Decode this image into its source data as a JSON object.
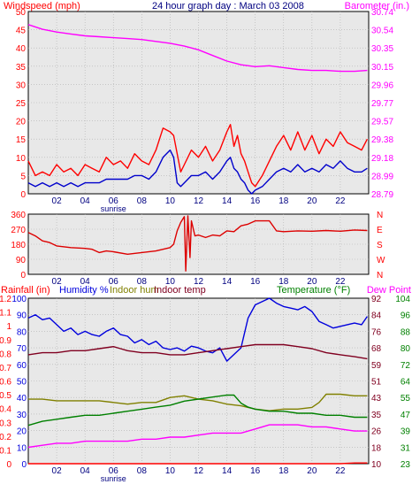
{
  "header": {
    "wind_label": "Windspeed (mph)",
    "title": "24 hour graph day : March 03 2008",
    "baro_label": "Barometer (in.)"
  },
  "mid_header": {
    "rain_label": "Rainfall (in)",
    "humidity_label": "Humidity %",
    "indoor_hum_label": "Indoor hum",
    "indoor_temp_label": "Indoor temp",
    "temp_label": "Temperature (°F)",
    "dew_label": "Dew Point"
  },
  "colors": {
    "frame": "#000000",
    "plot_bg": "#e8e8e8",
    "grid": "#b0b0b0",
    "red": "#ff0000",
    "wind_gust": "#ff0000",
    "wind_avg": "#0000cc",
    "baro": "#ff00ff",
    "dir": "#dd0000",
    "humidity": "#0000dd",
    "indoor_hum": "#808000",
    "indoor_temp": "#800020",
    "temperature": "#008000",
    "dew": "#ff00ff",
    "rain": "#ff0000",
    "axis_blue": "#0000dd",
    "axis_green": "#008000",
    "axis_maroon": "#800020"
  },
  "x_ticks": [
    "02",
    "04",
    "06",
    "08",
    "10",
    "12",
    "14",
    "16",
    "18",
    "20",
    "22"
  ],
  "sunrise_label": "sunrise",
  "chart_data": [
    {
      "type": "line",
      "title": "24 hour graph day : March 03 2008",
      "xlabel": "",
      "x_range": [
        0,
        24
      ],
      "left_axis": {
        "label": "Windspeed (mph)",
        "ticks": [
          "0",
          "5",
          "10",
          "15",
          "20",
          "25",
          "30",
          "35",
          "40",
          "45",
          "50"
        ],
        "range": [
          0,
          50
        ]
      },
      "right_axis": {
        "label": "Barometer (in.)",
        "ticks": [
          "28.79",
          "28.99",
          "29.18",
          "29.38",
          "29.57",
          "29.77",
          "29.96",
          "30.15",
          "30.35",
          "30.54",
          "30.74"
        ],
        "range": [
          28.79,
          30.74
        ]
      },
      "series": [
        {
          "name": "Windspeed (mph)",
          "axis": "left",
          "color": "#ff0000",
          "x": [
            0,
            0.5,
            1,
            1.5,
            2,
            2.5,
            3,
            3.5,
            4,
            4.5,
            5,
            5.5,
            6,
            6.5,
            7,
            7.5,
            8,
            8.5,
            9,
            9.5,
            10,
            10.25,
            10.5,
            10.75,
            11,
            11.5,
            12,
            12.5,
            13,
            13.5,
            14,
            14.25,
            14.5,
            14.75,
            15,
            15.25,
            15.5,
            15.75,
            16,
            16.5,
            17,
            17.5,
            18,
            18.5,
            19,
            19.5,
            20,
            20.5,
            21,
            21.5,
            22,
            22.5,
            23,
            23.5,
            23.9
          ],
          "values": [
            9,
            5,
            6,
            5,
            8,
            6,
            7,
            5,
            8,
            7,
            6,
            10,
            8,
            9,
            7,
            11,
            9,
            8,
            12,
            18,
            17,
            16,
            11,
            6,
            8,
            12,
            10,
            13,
            9,
            12,
            17,
            19,
            13,
            16,
            11,
            9,
            6,
            3,
            2,
            5,
            9,
            13,
            16,
            12,
            17,
            12,
            16,
            11,
            15,
            13,
            17,
            14,
            13,
            12,
            15
          ]
        },
        {
          "name": "Windspeed average",
          "axis": "left",
          "color": "#0000cc",
          "x": [
            0,
            0.5,
            1,
            1.5,
            2,
            2.5,
            3,
            3.5,
            4,
            4.5,
            5,
            5.5,
            6,
            6.5,
            7,
            7.5,
            8,
            8.5,
            9,
            9.5,
            10,
            10.25,
            10.5,
            10.75,
            11,
            11.5,
            12,
            12.5,
            13,
            13.5,
            14,
            14.25,
            14.5,
            14.75,
            15,
            15.25,
            15.5,
            15.75,
            16,
            16.5,
            17,
            17.5,
            18,
            18.5,
            19,
            19.5,
            20,
            20.5,
            21,
            21.5,
            22,
            22.5,
            23,
            23.5,
            23.9
          ],
          "values": [
            3,
            2,
            3,
            2,
            3,
            2,
            3,
            2,
            3,
            3,
            3,
            4,
            4,
            4,
            4,
            5,
            5,
            4,
            6,
            10,
            12,
            10,
            3,
            2,
            3,
            5,
            5,
            6,
            4,
            6,
            9,
            10,
            7,
            6,
            4,
            3,
            1,
            0,
            1,
            2,
            4,
            6,
            7,
            6,
            8,
            6,
            7,
            6,
            8,
            7,
            9,
            7,
            6,
            6,
            7
          ]
        },
        {
          "name": "Barometer (in.)",
          "axis": "right",
          "color": "#ff00ff",
          "x": [
            0,
            1,
            2,
            3,
            4,
            5,
            6,
            7,
            8,
            9,
            10,
            11,
            12,
            13,
            14,
            15,
            16,
            17,
            18,
            19,
            20,
            21,
            22,
            23,
            23.9
          ],
          "values": [
            30.6,
            30.55,
            30.52,
            30.5,
            30.48,
            30.47,
            30.46,
            30.45,
            30.44,
            30.42,
            30.4,
            30.37,
            30.33,
            30.27,
            30.21,
            30.17,
            30.15,
            30.16,
            30.14,
            30.12,
            30.11,
            30.11,
            30.1,
            30.1,
            30.11
          ]
        }
      ]
    },
    {
      "type": "line",
      "title": "",
      "x_range": [
        0,
        24
      ],
      "left_axis": {
        "label": "",
        "ticks": [
          "0",
          "90",
          "180",
          "270",
          "360"
        ],
        "range": [
          0,
          360
        ]
      },
      "right_axis": {
        "label": "",
        "ticks": [
          "N",
          "W",
          "S",
          "E",
          "N"
        ],
        "range": [
          0,
          360
        ]
      },
      "series": [
        {
          "name": "Wind direction",
          "axis": "left",
          "color": "#dd0000",
          "x": [
            0,
            0.5,
            1,
            1.5,
            2,
            3,
            4,
            4.5,
            5,
            5.5,
            6,
            7,
            8,
            9,
            10,
            10.25,
            10.5,
            10.75,
            11,
            11.1,
            11.25,
            11.4,
            11.5,
            11.75,
            12,
            12.5,
            13,
            13.5,
            14,
            14.5,
            15,
            15.5,
            16,
            16.5,
            17,
            17.5,
            18,
            19,
            20,
            21,
            22,
            23,
            23.9
          ],
          "values": [
            250,
            230,
            200,
            190,
            170,
            160,
            155,
            150,
            130,
            140,
            135,
            120,
            130,
            140,
            160,
            180,
            260,
            310,
            345,
            20,
            350,
            100,
            320,
            230,
            235,
            220,
            235,
            230,
            260,
            255,
            290,
            300,
            320,
            320,
            320,
            260,
            255,
            260,
            258,
            262,
            258,
            265,
            262
          ]
        }
      ]
    },
    {
      "type": "line",
      "title": "",
      "x_range": [
        0,
        24
      ],
      "left_axis": {
        "label": "Rainfall (in)",
        "ticks": [
          "0",
          "0.1",
          "0.2",
          "0.3",
          "0.4",
          "0.5",
          "0.6",
          "0.7",
          "0.8",
          "0.9",
          "1",
          "1.1",
          "1.2"
        ],
        "range": [
          0,
          1.2
        ]
      },
      "left_axis_2": {
        "label": "Humidity %",
        "ticks": [
          "0",
          "10",
          "20",
          "30",
          "40",
          "50",
          "60",
          "70",
          "80",
          "90",
          "100"
        ],
        "range": [
          0,
          100
        ]
      },
      "right_axis": {
        "label": "Temperature (°F)",
        "ticks": [
          "10",
          "18",
          "26",
          "35",
          "43",
          "51",
          "59",
          "68",
          "76",
          "84",
          "92"
        ],
        "range": [
          10,
          92
        ]
      },
      "right_axis_2": {
        "label": "Dew Point",
        "ticks": [
          "23",
          "31",
          "39",
          "47",
          "55",
          "64",
          "72",
          "80",
          "88",
          "96",
          "104"
        ],
        "range": [
          23,
          104
        ]
      },
      "series": [
        {
          "name": "Humidity %",
          "axis": "left2",
          "color": "#0000dd",
          "x": [
            0,
            0.5,
            1,
            1.5,
            2,
            2.5,
            3,
            3.5,
            4,
            4.5,
            5,
            5.5,
            6,
            6.5,
            7,
            7.5,
            8,
            8.5,
            9,
            9.5,
            10,
            10.5,
            11,
            11.5,
            12,
            12.5,
            13,
            13.5,
            14,
            14.5,
            15,
            15.5,
            16,
            16.5,
            17,
            17.5,
            18,
            18.5,
            19,
            19.5,
            20,
            20.5,
            21,
            21.5,
            22,
            22.5,
            23,
            23.5,
            23.9
          ],
          "values": [
            88,
            90,
            87,
            88,
            84,
            80,
            82,
            78,
            80,
            78,
            77,
            80,
            82,
            78,
            77,
            73,
            75,
            72,
            74,
            70,
            69,
            70,
            68,
            71,
            70,
            68,
            67,
            70,
            62,
            66,
            70,
            88,
            96,
            98,
            100,
            97,
            95,
            94,
            93,
            95,
            92,
            86,
            84,
            82,
            83,
            84,
            85,
            84,
            89
          ]
        },
        {
          "name": "Indoor hum",
          "axis": "left2",
          "color": "#808000",
          "x": [
            0,
            1,
            2,
            3,
            4,
            5,
            6,
            7,
            8,
            9,
            10,
            11,
            12,
            13,
            14,
            15,
            16,
            17,
            18,
            19,
            20,
            20.5,
            21,
            22,
            23,
            23.9
          ],
          "values": [
            39,
            39,
            38,
            38,
            38,
            38,
            37,
            36,
            37,
            37,
            40,
            41,
            39,
            38,
            36,
            35,
            33,
            32,
            33,
            33,
            34,
            37,
            42,
            42,
            41,
            41
          ]
        },
        {
          "name": "Indoor temp",
          "axis": "right",
          "color": "#800020",
          "x": [
            0,
            1,
            2,
            3,
            4,
            5,
            6,
            6.5,
            7,
            8,
            9,
            10,
            11,
            12,
            13,
            14,
            15,
            16,
            17,
            18,
            19,
            20,
            21,
            22,
            23,
            23.9
          ],
          "values": [
            64,
            65,
            65,
            66,
            66,
            67,
            68,
            67,
            66,
            65,
            65,
            64,
            64,
            65,
            66,
            67,
            68,
            69,
            69,
            69,
            68,
            67,
            65,
            64,
            63,
            62
          ]
        },
        {
          "name": "Temperature (°F)",
          "axis": "right",
          "color": "#008000",
          "x": [
            0,
            1,
            2,
            3,
            4,
            5,
            6,
            7,
            8,
            9,
            10,
            11,
            12,
            13,
            14,
            14.5,
            15,
            15.5,
            16,
            17,
            18,
            19,
            20,
            21,
            22,
            23,
            23.9
          ],
          "values": [
            29,
            31,
            32,
            33,
            34,
            34,
            35,
            36,
            37,
            38,
            39,
            41,
            42,
            43,
            44,
            44,
            40,
            38,
            37,
            36,
            36,
            35,
            35,
            34,
            34,
            33,
            33
          ]
        },
        {
          "name": "Dew Point",
          "axis": "right2",
          "color": "#ff00ff",
          "x": [
            0,
            1,
            2,
            3,
            4,
            5,
            6,
            7,
            8,
            9,
            10,
            11,
            12,
            13,
            14,
            15,
            16,
            17,
            18,
            19,
            20,
            21,
            22,
            23,
            23.9
          ],
          "values": [
            31,
            32,
            33,
            33,
            34,
            34,
            34,
            34,
            35,
            35,
            36,
            36,
            37,
            38,
            38,
            38,
            40,
            42,
            42,
            42,
            41,
            41,
            40,
            39,
            39
          ]
        },
        {
          "name": "Rainfall (in)",
          "axis": "left",
          "color": "#ff0000",
          "x": [
            0,
            22,
            23,
            23.9
          ],
          "values": [
            0,
            0,
            0.005,
            0.005
          ]
        }
      ]
    }
  ]
}
